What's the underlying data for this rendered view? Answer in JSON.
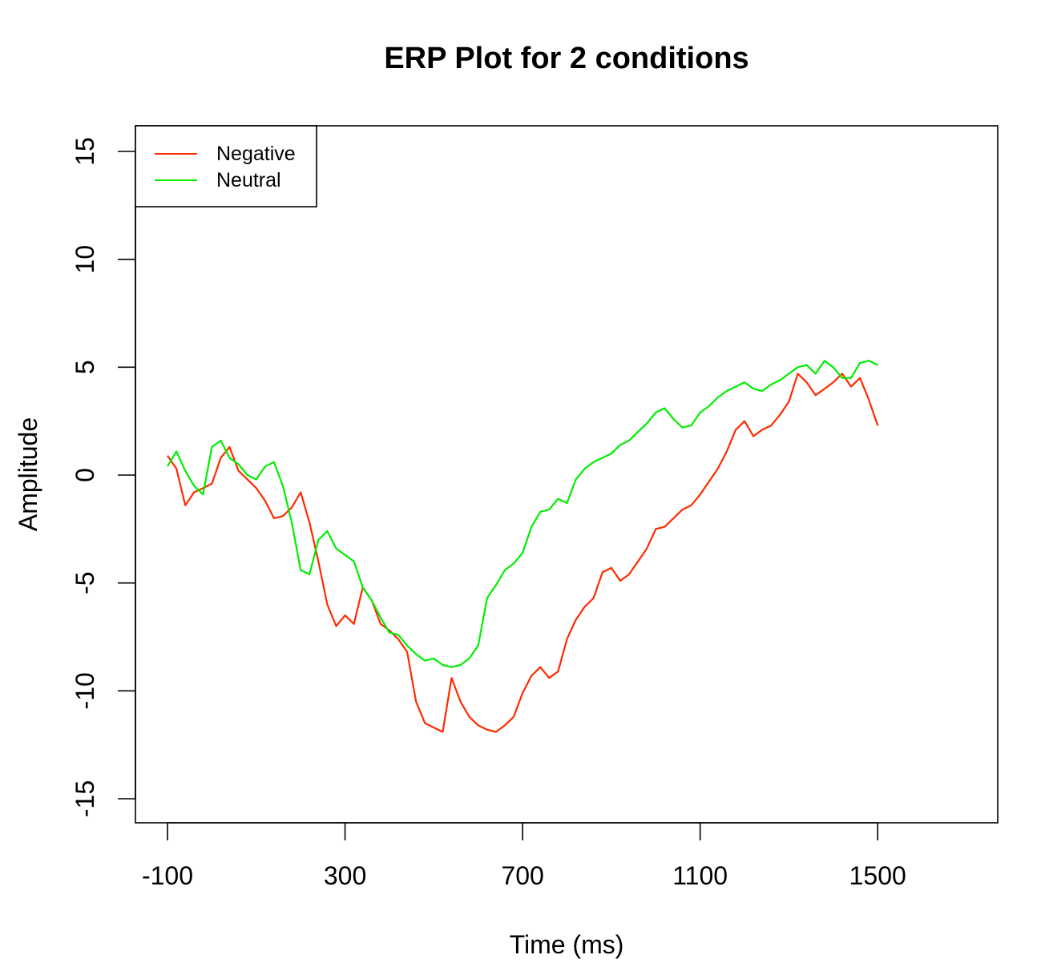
{
  "chart_data": {
    "type": "line",
    "title": "ERP Plot for  2 conditions",
    "xlabel": "Time (ms)",
    "ylabel": "Amplitude",
    "xlim": [
      -100,
      1700
    ],
    "ylim": [
      -15,
      15
    ],
    "x_ticks": [
      -100,
      300,
      700,
      1100,
      1500
    ],
    "y_ticks": [
      -15,
      -10,
      -5,
      0,
      5,
      10,
      15
    ],
    "grid": false,
    "legend_position": "top-left",
    "series": [
      {
        "name": "Negative",
        "color": "#ff2a00",
        "points": [
          [
            -100,
            0.9
          ],
          [
            -80,
            0.3
          ],
          [
            -60,
            -1.4
          ],
          [
            -40,
            -0.8
          ],
          [
            -20,
            -0.6
          ],
          [
            0,
            -0.4
          ],
          [
            20,
            0.8
          ],
          [
            40,
            1.3
          ],
          [
            60,
            0.2
          ],
          [
            80,
            -0.2
          ],
          [
            100,
            -0.6
          ],
          [
            120,
            -1.2
          ],
          [
            140,
            -2.0
          ],
          [
            160,
            -1.9
          ],
          [
            180,
            -1.5
          ],
          [
            200,
            -0.8
          ],
          [
            220,
            -2.2
          ],
          [
            240,
            -4.0
          ],
          [
            260,
            -6.0
          ],
          [
            280,
            -7.0
          ],
          [
            300,
            -6.5
          ],
          [
            320,
            -6.9
          ],
          [
            340,
            -5.2
          ],
          [
            360,
            -5.8
          ],
          [
            380,
            -6.9
          ],
          [
            400,
            -7.2
          ],
          [
            420,
            -7.6
          ],
          [
            440,
            -8.2
          ],
          [
            460,
            -10.5
          ],
          [
            480,
            -11.5
          ],
          [
            500,
            -11.7
          ],
          [
            520,
            -11.9
          ],
          [
            540,
            -9.4
          ],
          [
            560,
            -10.5
          ],
          [
            580,
            -11.2
          ],
          [
            600,
            -11.6
          ],
          [
            620,
            -11.8
          ],
          [
            640,
            -11.9
          ],
          [
            660,
            -11.6
          ],
          [
            680,
            -11.2
          ],
          [
            700,
            -10.1
          ],
          [
            720,
            -9.3
          ],
          [
            740,
            -8.9
          ],
          [
            760,
            -9.4
          ],
          [
            780,
            -9.1
          ],
          [
            800,
            -7.6
          ],
          [
            820,
            -6.7
          ],
          [
            840,
            -6.1
          ],
          [
            860,
            -5.7
          ],
          [
            880,
            -4.5
          ],
          [
            900,
            -4.3
          ],
          [
            920,
            -4.9
          ],
          [
            940,
            -4.6
          ],
          [
            960,
            -4.0
          ],
          [
            980,
            -3.4
          ],
          [
            1000,
            -2.5
          ],
          [
            1020,
            -2.4
          ],
          [
            1040,
            -2.0
          ],
          [
            1060,
            -1.6
          ],
          [
            1080,
            -1.4
          ],
          [
            1100,
            -0.9
          ],
          [
            1120,
            -0.3
          ],
          [
            1140,
            0.3
          ],
          [
            1160,
            1.1
          ],
          [
            1180,
            2.1
          ],
          [
            1200,
            2.5
          ],
          [
            1220,
            1.8
          ],
          [
            1240,
            2.1
          ],
          [
            1260,
            2.3
          ],
          [
            1280,
            2.8
          ],
          [
            1300,
            3.4
          ],
          [
            1320,
            4.7
          ],
          [
            1340,
            4.3
          ],
          [
            1360,
            3.7
          ],
          [
            1380,
            4.0
          ],
          [
            1400,
            4.3
          ],
          [
            1420,
            4.7
          ],
          [
            1440,
            4.1
          ],
          [
            1460,
            4.5
          ],
          [
            1480,
            3.5
          ],
          [
            1500,
            2.3
          ]
        ]
      },
      {
        "name": "Neutral",
        "color": "#00ee00",
        "points": [
          [
            -100,
            0.4
          ],
          [
            -80,
            1.1
          ],
          [
            -60,
            0.2
          ],
          [
            -40,
            -0.5
          ],
          [
            -20,
            -0.9
          ],
          [
            0,
            1.3
          ],
          [
            20,
            1.6
          ],
          [
            40,
            0.8
          ],
          [
            60,
            0.5
          ],
          [
            80,
            0.0
          ],
          [
            100,
            -0.2
          ],
          [
            120,
            0.4
          ],
          [
            140,
            0.6
          ],
          [
            160,
            -0.5
          ],
          [
            180,
            -2.2
          ],
          [
            200,
            -4.4
          ],
          [
            220,
            -4.6
          ],
          [
            240,
            -3.0
          ],
          [
            260,
            -2.6
          ],
          [
            280,
            -3.4
          ],
          [
            300,
            -3.7
          ],
          [
            320,
            -4.0
          ],
          [
            340,
            -5.2
          ],
          [
            360,
            -5.8
          ],
          [
            380,
            -6.6
          ],
          [
            400,
            -7.3
          ],
          [
            420,
            -7.4
          ],
          [
            440,
            -7.9
          ],
          [
            460,
            -8.3
          ],
          [
            480,
            -8.6
          ],
          [
            500,
            -8.5
          ],
          [
            520,
            -8.8
          ],
          [
            540,
            -8.9
          ],
          [
            560,
            -8.8
          ],
          [
            580,
            -8.5
          ],
          [
            600,
            -7.9
          ],
          [
            620,
            -5.7
          ],
          [
            640,
            -5.1
          ],
          [
            660,
            -4.4
          ],
          [
            680,
            -4.1
          ],
          [
            700,
            -3.6
          ],
          [
            720,
            -2.4
          ],
          [
            740,
            -1.7
          ],
          [
            760,
            -1.6
          ],
          [
            780,
            -1.1
          ],
          [
            800,
            -1.3
          ],
          [
            820,
            -0.2
          ],
          [
            840,
            0.3
          ],
          [
            860,
            0.6
          ],
          [
            880,
            0.8
          ],
          [
            900,
            1.0
          ],
          [
            920,
            1.4
          ],
          [
            940,
            1.6
          ],
          [
            960,
            2.0
          ],
          [
            980,
            2.4
          ],
          [
            1000,
            2.9
          ],
          [
            1020,
            3.1
          ],
          [
            1040,
            2.6
          ],
          [
            1060,
            2.2
          ],
          [
            1080,
            2.3
          ],
          [
            1100,
            2.9
          ],
          [
            1120,
            3.2
          ],
          [
            1140,
            3.6
          ],
          [
            1160,
            3.9
          ],
          [
            1180,
            4.1
          ],
          [
            1200,
            4.3
          ],
          [
            1220,
            4.0
          ],
          [
            1240,
            3.9
          ],
          [
            1260,
            4.2
          ],
          [
            1280,
            4.4
          ],
          [
            1300,
            4.7
          ],
          [
            1320,
            5.0
          ],
          [
            1340,
            5.1
          ],
          [
            1360,
            4.7
          ],
          [
            1380,
            5.3
          ],
          [
            1400,
            5.0
          ],
          [
            1420,
            4.5
          ],
          [
            1440,
            4.5
          ],
          [
            1460,
            5.2
          ],
          [
            1480,
            5.3
          ],
          [
            1500,
            5.1
          ]
        ]
      }
    ]
  }
}
